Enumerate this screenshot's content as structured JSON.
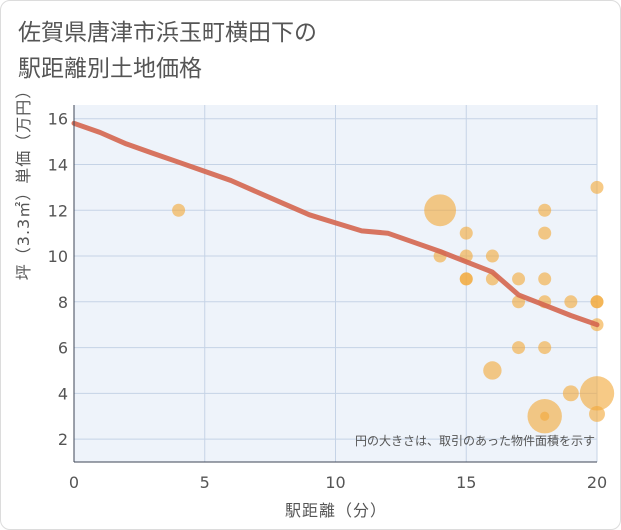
{
  "title_line1": "佐賀県唐津市浜玉町横田下の",
  "title_line2": "駅距離別土地価格",
  "note": "円の大きさは、取引のあった物件面積を示す",
  "chart_data": {
    "type": "scatter",
    "xlabel": "駅距離（分）",
    "ylabel": "坪（3.3㎡）単価（万円）",
    "xlim": [
      0,
      20
    ],
    "ylim": [
      1,
      16.6
    ],
    "xticks": [
      "0",
      "5",
      "10",
      "15",
      "20"
    ],
    "yticks": [
      "2",
      "4",
      "6",
      "8",
      "10",
      "12",
      "14",
      "16"
    ],
    "grid": true,
    "colors": {
      "points": "#f2a93b",
      "trend": "#d4664f"
    },
    "points": [
      {
        "x": 4,
        "y": 12,
        "size": 1
      },
      {
        "x": 14,
        "y": 12,
        "size": 6
      },
      {
        "x": 14,
        "y": 10,
        "size": 1
      },
      {
        "x": 15,
        "y": 11,
        "size": 1
      },
      {
        "x": 15,
        "y": 10,
        "size": 1
      },
      {
        "x": 15,
        "y": 9,
        "size": 1
      },
      {
        "x": 15,
        "y": 9,
        "size": 1
      },
      {
        "x": 16,
        "y": 10,
        "size": 1
      },
      {
        "x": 16,
        "y": 9,
        "size": 1
      },
      {
        "x": 16,
        "y": 5,
        "size": 2
      },
      {
        "x": 17,
        "y": 9,
        "size": 1
      },
      {
        "x": 17,
        "y": 8,
        "size": 1
      },
      {
        "x": 17,
        "y": 6,
        "size": 1
      },
      {
        "x": 18,
        "y": 12,
        "size": 1
      },
      {
        "x": 18,
        "y": 11,
        "size": 1
      },
      {
        "x": 18,
        "y": 9,
        "size": 1
      },
      {
        "x": 18,
        "y": 8,
        "size": 1
      },
      {
        "x": 18,
        "y": 6,
        "size": 1
      },
      {
        "x": 18,
        "y": 3,
        "size": 7
      },
      {
        "x": 18,
        "y": 3,
        "size": 0.5
      },
      {
        "x": 19,
        "y": 8,
        "size": 1
      },
      {
        "x": 19,
        "y": 4,
        "size": 1.5
      },
      {
        "x": 20,
        "y": 13,
        "size": 1
      },
      {
        "x": 20,
        "y": 8,
        "size": 1
      },
      {
        "x": 20,
        "y": 8,
        "size": 1
      },
      {
        "x": 20,
        "y": 7,
        "size": 1
      },
      {
        "x": 20,
        "y": 4,
        "size": 7
      },
      {
        "x": 20,
        "y": 3.1,
        "size": 1.5
      }
    ],
    "trend": {
      "x": [
        0,
        1,
        2,
        3,
        4,
        5,
        6,
        7,
        8,
        9,
        10,
        11,
        12,
        13,
        14,
        15,
        16,
        17,
        18,
        19,
        20
      ],
      "y": [
        15.8,
        15.4,
        14.9,
        14.5,
        14.1,
        13.7,
        13.3,
        12.8,
        12.3,
        11.8,
        11.45,
        11.1,
        11.0,
        10.6,
        10.2,
        9.75,
        9.3,
        8.3,
        7.85,
        7.4,
        7.0
      ]
    }
  }
}
